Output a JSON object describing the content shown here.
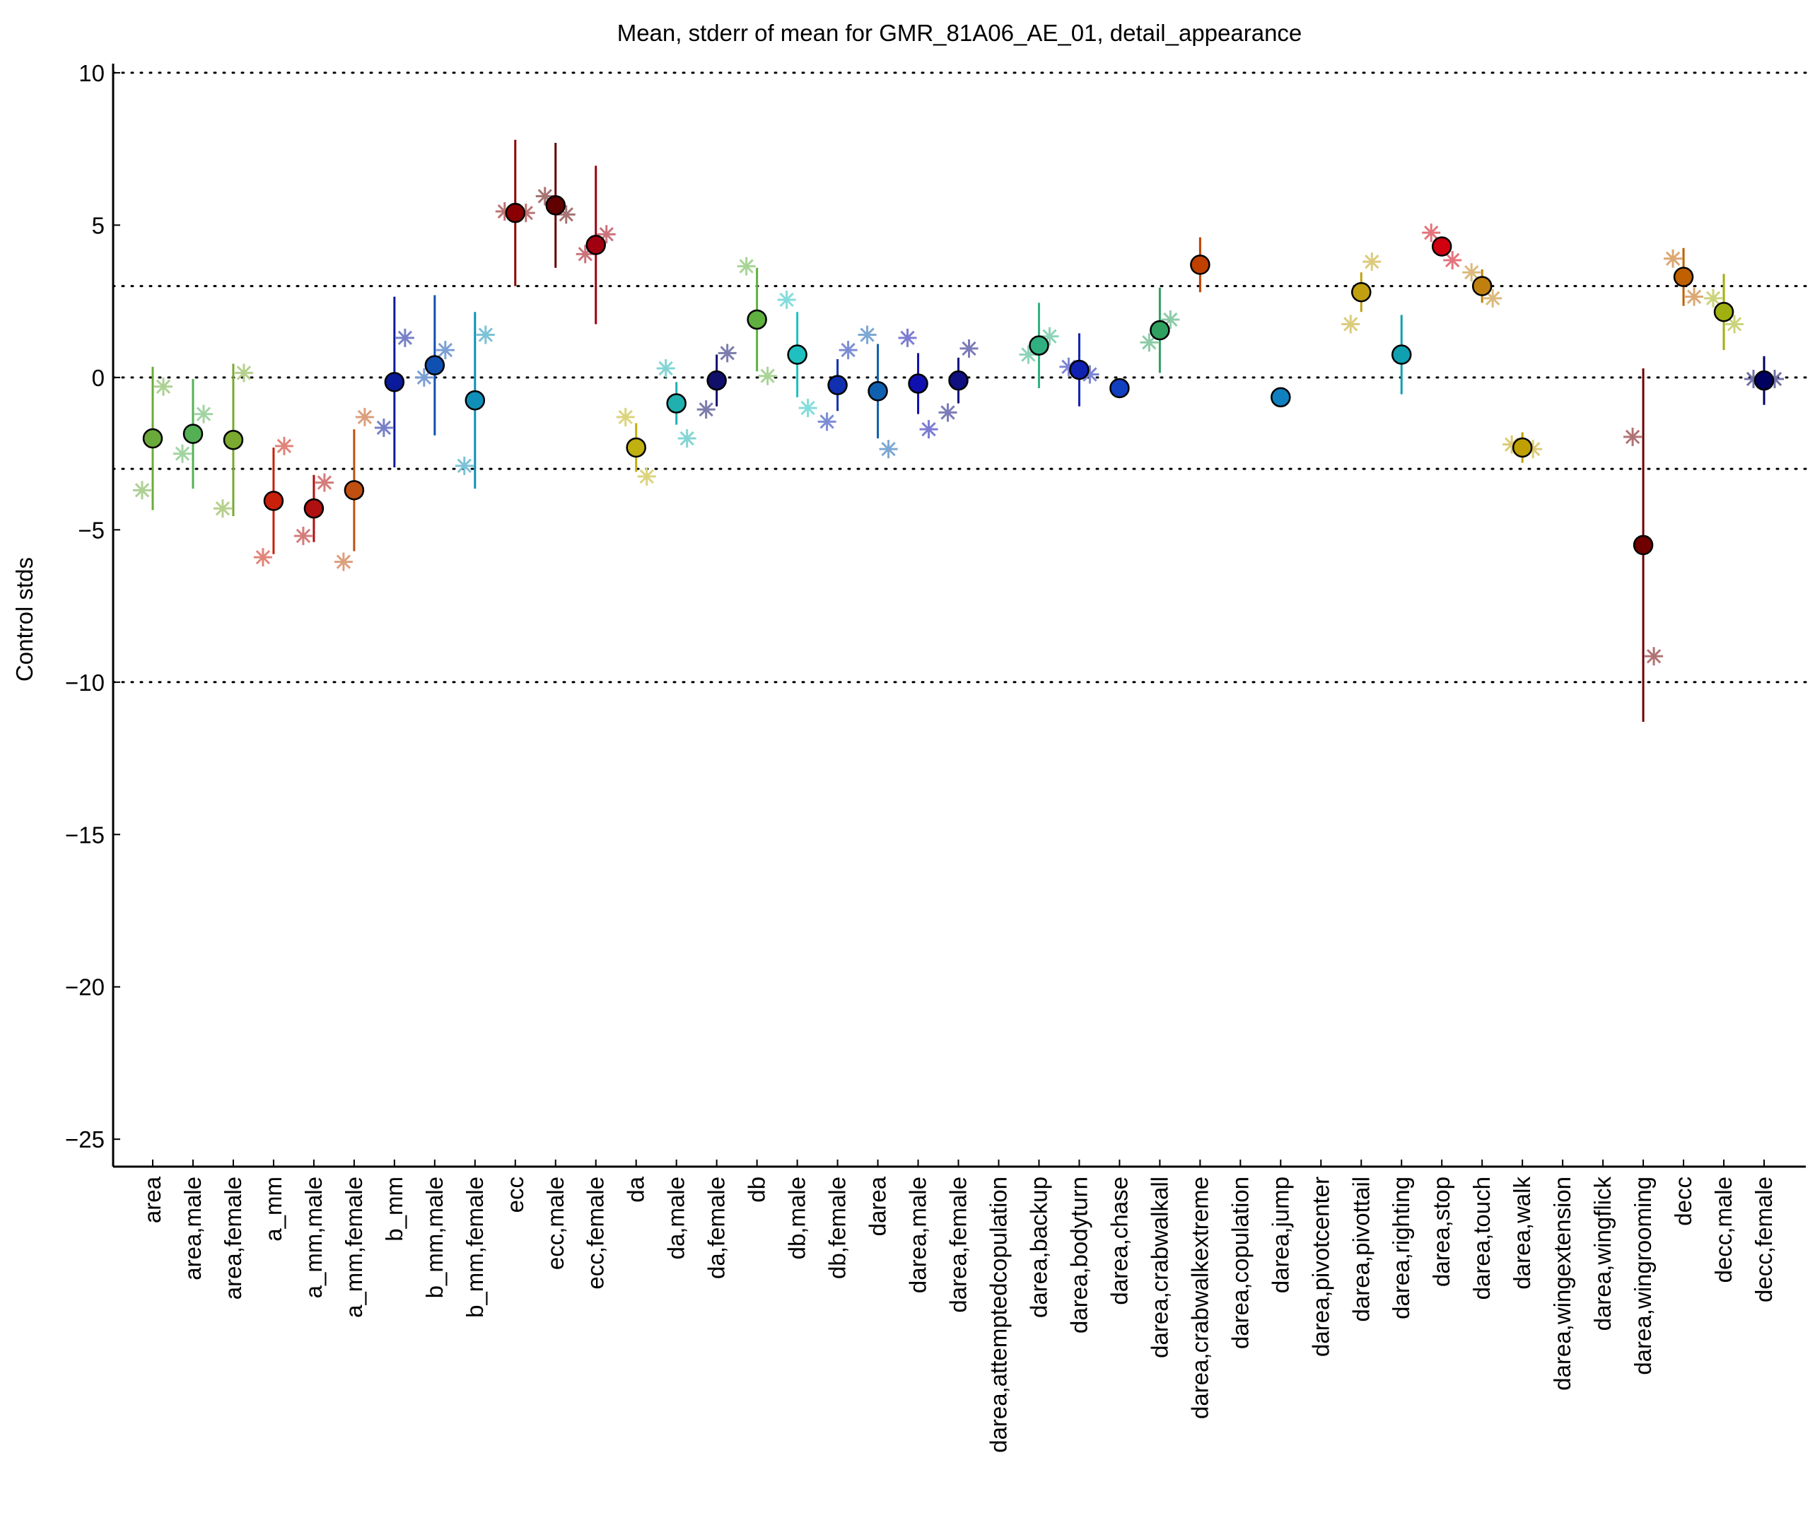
{
  "chart_data": {
    "type": "errorbar",
    "title": "Mean, stderr of mean for GMR_81A06_AE_01, detail_appearance",
    "ylabel": "Control stds",
    "ylim": [
      -25.9,
      10.3
    ],
    "yticks": [
      {
        "value": -25,
        "label": "−25"
      },
      {
        "value": -20,
        "label": "−20"
      },
      {
        "value": -15,
        "label": "−15"
      },
      {
        "value": -10,
        "label": "−10"
      },
      {
        "value": -5,
        "label": "−5"
      },
      0,
      5,
      10
    ],
    "reference_lines": [
      10,
      3,
      0,
      -3,
      -10
    ],
    "categories": [
      "area",
      "area,male",
      "area,female",
      "a_mm",
      "a_mm,male",
      "a_mm,female",
      "b_mm",
      "b_mm,male",
      "b_mm,female",
      "ecc",
      "ecc,male",
      "ecc,female",
      "da",
      "da,male",
      "da,female",
      "db",
      "db,male",
      "db,female",
      "darea",
      "darea,male",
      "darea,female",
      "darea,attemptedcopulation",
      "darea,backup",
      "darea,bodyturn",
      "darea,chase",
      "darea,crabwalkall",
      "darea,crabwalkextreme",
      "darea,copulation",
      "darea,jump",
      "darea,pivotcenter",
      "darea,pivottail",
      "darea,righting",
      "darea,stop",
      "darea,touch",
      "darea,walk",
      "darea,wingextension",
      "darea,wingflick",
      "darea,wingrooming",
      "decc",
      "decc,male",
      "decc,female"
    ],
    "values": [
      -2.0,
      -1.85,
      -2.05,
      -4.05,
      -4.3,
      -3.7,
      -0.15,
      0.4,
      -0.75,
      5.4,
      5.65,
      4.35,
      -2.3,
      -0.85,
      -0.1,
      1.9,
      0.75,
      -0.25,
      -0.45,
      -0.2,
      -0.1,
      null,
      1.05,
      0.25,
      -0.35,
      1.55,
      3.7,
      null,
      -0.65,
      null,
      2.8,
      0.75,
      4.3,
      3.0,
      -2.3,
      null,
      null,
      -5.5,
      3.3,
      2.15,
      -0.1
    ],
    "errors": [
      2.35,
      1.8,
      2.5,
      1.75,
      1.1,
      2.0,
      2.8,
      2.3,
      2.9,
      2.4,
      2.05,
      2.6,
      0.8,
      0.7,
      0.85,
      1.7,
      1.4,
      0.85,
      1.55,
      1.0,
      0.75,
      null,
      1.4,
      1.2,
      0.3,
      1.4,
      0.9,
      null,
      0.25,
      null,
      0.65,
      1.3,
      0.2,
      0.55,
      0.5,
      null,
      null,
      5.8,
      0.95,
      1.25,
      0.8
    ],
    "left_points": [
      -3.7,
      -2.5,
      -4.3,
      -5.9,
      -5.2,
      -6.05,
      -1.65,
      0,
      -2.9,
      5.45,
      5.95,
      4.05,
      -1.3,
      0.3,
      -1.05,
      3.65,
      2.55,
      -1.45,
      1.4,
      1.3,
      -1.15,
      null,
      0.75,
      0.35,
      null,
      1.15,
      null,
      null,
      null,
      null,
      1.75,
      null,
      4.75,
      3.45,
      -2.2,
      null,
      null,
      -1.95,
      3.9,
      2.6,
      -0.05
    ],
    "right_points": [
      -0.3,
      -1.2,
      0.15,
      -2.25,
      -3.45,
      -1.3,
      1.3,
      0.9,
      1.4,
      5.4,
      5.35,
      4.7,
      -3.25,
      -2.0,
      0.8,
      0.05,
      -1.0,
      0.9,
      -2.35,
      -1.7,
      0.95,
      null,
      1.35,
      0.1,
      null,
      1.9,
      null,
      null,
      null,
      null,
      3.8,
      null,
      3.85,
      2.6,
      -2.35,
      null,
      null,
      -9.15,
      2.65,
      1.75,
      -0.05
    ],
    "colors": [
      "#6aaa3a",
      "#55b055",
      "#7aaa30",
      "#c8200a",
      "#b01010",
      "#c05010",
      "#0a1a9a",
      "#1050b0",
      "#1090b8",
      "#8a0000",
      "#600000",
      "#a00010",
      "#c0b010",
      "#20b0b0",
      "#10106a",
      "#60b040",
      "#20c0c0",
      "#1030b0",
      "#1060b0",
      "#1010b0",
      "#101080",
      "#999999",
      "#30b080",
      "#1020b0",
      "#1040c0",
      "#30a060",
      "#c04000",
      "#999999",
      "#1080c0",
      "#999999",
      "#c0a010",
      "#10a0b0",
      "#d00010",
      "#c08010",
      "#c0a000",
      "#999999",
      "#999999",
      "#700000",
      "#c06000",
      "#a0b010",
      "#000060"
    ]
  }
}
